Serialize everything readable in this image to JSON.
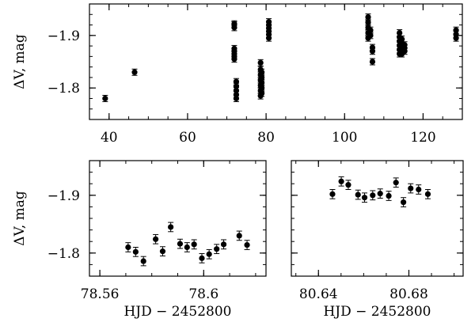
{
  "chart_data": [
    {
      "type": "scatter",
      "xlabel": "",
      "ylabel": "ΔV, mag",
      "xlim": [
        35,
        130
      ],
      "ylim": [
        -1.74,
        -1.96
      ],
      "y_inverted": true,
      "xticks": [
        40,
        60,
        80,
        100,
        120
      ],
      "xtick_labels": [
        "40",
        "60",
        "80",
        "100",
        "120"
      ],
      "yticks": [
        -1.9,
        -1.8
      ],
      "ytick_labels": [
        "−1.9",
        "−1.8"
      ],
      "grid": false,
      "error_bars": true,
      "points": [
        [
          39.0,
          -1.78
        ],
        [
          46.5,
          -1.83
        ],
        [
          71.9,
          -1.915
        ],
        [
          71.9,
          -1.92
        ],
        [
          71.9,
          -1.922
        ],
        [
          71.9,
          -1.855
        ],
        [
          71.9,
          -1.86
        ],
        [
          71.9,
          -1.865
        ],
        [
          71.9,
          -1.87
        ],
        [
          71.9,
          -1.875
        ],
        [
          72.4,
          -1.78
        ],
        [
          72.4,
          -1.787
        ],
        [
          72.4,
          -1.795
        ],
        [
          72.4,
          -1.803
        ],
        [
          72.4,
          -1.812
        ],
        [
          78.6,
          -1.785
        ],
        [
          78.6,
          -1.795
        ],
        [
          78.6,
          -1.805
        ],
        [
          78.6,
          -1.815
        ],
        [
          78.6,
          -1.825
        ],
        [
          78.6,
          -1.835
        ],
        [
          78.6,
          -1.848
        ],
        [
          78.9,
          -1.79
        ],
        [
          78.9,
          -1.8
        ],
        [
          78.9,
          -1.81
        ],
        [
          78.9,
          -1.82
        ],
        [
          78.9,
          -1.83
        ],
        [
          80.7,
          -1.895
        ],
        [
          80.7,
          -1.902
        ],
        [
          80.7,
          -1.908
        ],
        [
          80.7,
          -1.914
        ],
        [
          80.7,
          -1.92
        ],
        [
          80.7,
          -1.926
        ],
        [
          106.0,
          -1.895
        ],
        [
          106.0,
          -1.905
        ],
        [
          106.0,
          -1.915
        ],
        [
          106.0,
          -1.925
        ],
        [
          106.0,
          -1.935
        ],
        [
          106.6,
          -1.9
        ],
        [
          106.6,
          -1.91
        ],
        [
          107.1,
          -1.85
        ],
        [
          107.1,
          -1.87
        ],
        [
          107.1,
          -1.877
        ],
        [
          114.0,
          -1.865
        ],
        [
          114.0,
          -1.873
        ],
        [
          114.0,
          -1.881
        ],
        [
          114.0,
          -1.889
        ],
        [
          114.0,
          -1.897
        ],
        [
          114.0,
          -1.905
        ],
        [
          114.6,
          -1.865
        ],
        [
          114.6,
          -1.872
        ],
        [
          114.6,
          -1.879
        ],
        [
          114.6,
          -1.886
        ],
        [
          114.6,
          -1.893
        ],
        [
          115.3,
          -1.87
        ],
        [
          115.3,
          -1.876
        ],
        [
          115.3,
          -1.882
        ],
        [
          128.4,
          -1.895
        ],
        [
          128.4,
          -1.902
        ],
        [
          128.4,
          -1.91
        ]
      ]
    },
    {
      "type": "scatter",
      "xlabel": "HJD − 2452800",
      "ylabel": "ΔV, mag",
      "xlim": [
        78.556,
        78.624
      ],
      "ylim": [
        -1.76,
        -1.96
      ],
      "y_inverted": true,
      "xticks": [
        78.56,
        78.6
      ],
      "xtick_labels": [
        "78.56",
        "78.6"
      ],
      "yticks": [
        -1.9,
        -1.8
      ],
      "ytick_labels": [
        "−1.9",
        "−1.8"
      ],
      "grid": false,
      "error_bars": true,
      "points": [
        [
          78.5709,
          -1.81
        ],
        [
          78.5738,
          -1.802
        ],
        [
          78.5768,
          -1.786
        ],
        [
          78.5815,
          -1.824
        ],
        [
          78.5842,
          -1.803
        ],
        [
          78.5873,
          -1.845
        ],
        [
          78.5909,
          -1.816
        ],
        [
          78.5936,
          -1.81
        ],
        [
          78.5963,
          -1.815
        ],
        [
          78.5993,
          -1.791
        ],
        [
          78.6021,
          -1.798
        ],
        [
          78.605,
          -1.807
        ],
        [
          78.6077,
          -1.815
        ],
        [
          78.6137,
          -1.83
        ],
        [
          78.6167,
          -1.814
        ]
      ]
    },
    {
      "type": "scatter",
      "xlabel": "HJD − 2452800",
      "ylabel": "",
      "xlim": [
        80.628,
        80.704
      ],
      "ylim": [
        -1.76,
        -1.96
      ],
      "y_inverted": true,
      "xticks": [
        80.64,
        80.68
      ],
      "xtick_labels": [
        "80.64",
        "80.68"
      ],
      "yticks": [
        -1.9,
        -1.8
      ],
      "ytick_labels": [
        "",
        ""
      ],
      "grid": false,
      "error_bars": true,
      "points": [
        [
          80.6462,
          -1.902
        ],
        [
          80.6501,
          -1.924
        ],
        [
          80.6532,
          -1.918
        ],
        [
          80.6575,
          -1.901
        ],
        [
          80.6604,
          -1.896
        ],
        [
          80.664,
          -1.9
        ],
        [
          80.6673,
          -1.903
        ],
        [
          80.6711,
          -1.899
        ],
        [
          80.6743,
          -1.922
        ],
        [
          80.6776,
          -1.888
        ],
        [
          80.6808,
          -1.912
        ],
        [
          80.6843,
          -1.91
        ],
        [
          80.6884,
          -1.902
        ]
      ]
    }
  ]
}
